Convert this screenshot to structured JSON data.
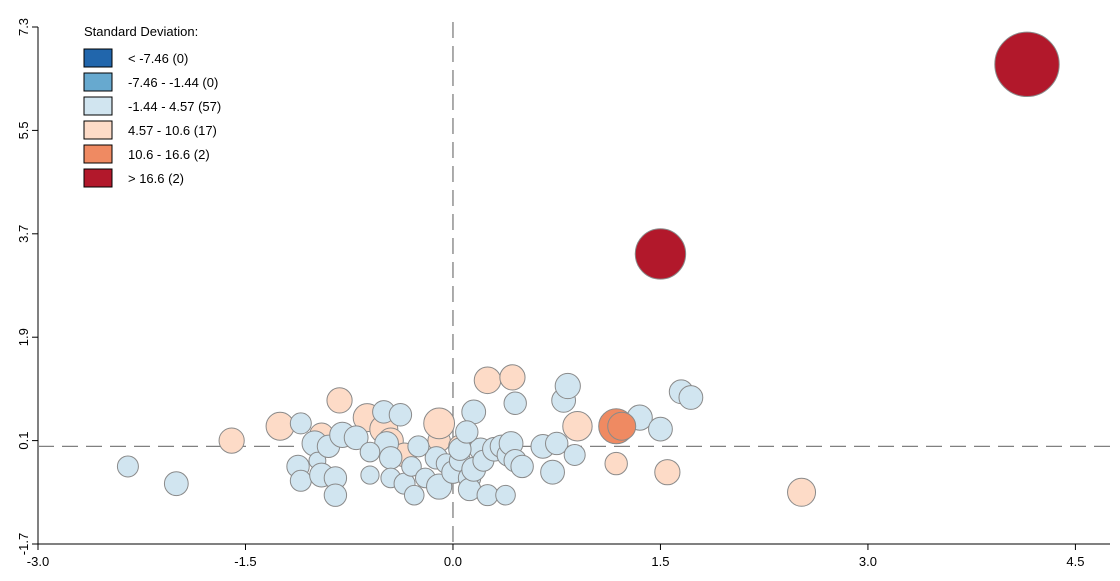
{
  "chart_data": {
    "type": "scatter",
    "title": "",
    "xlabel": "",
    "ylabel": "",
    "xlim": [
      -3.0,
      4.75
    ],
    "ylim": [
      -1.7,
      7.3
    ],
    "x_ticks": [
      -3.0,
      -1.5,
      0.0,
      1.5,
      3.0,
      4.5
    ],
    "x_tick_labels": [
      "-3.0",
      "-1.5",
      "0.0",
      "1.5",
      "3.0",
      "4.5"
    ],
    "y_ticks": [
      -1.7,
      0.1,
      1.9,
      3.7,
      5.5,
      7.3
    ],
    "y_tick_labels": [
      "-1.7",
      "0.1",
      "1.9",
      "3.7",
      "5.5",
      "7.3"
    ],
    "reference_lines": {
      "x": 0.0,
      "y": 0.0
    },
    "grid": false,
    "legend": {
      "title": "Standard Deviation:",
      "placement": "top-left",
      "entries": [
        {
          "label": "< -7.46 (0)",
          "color": "#2166ac"
        },
        {
          "label": "-7.46 - -1.44 (0)",
          "color": "#67a9cf"
        },
        {
          "label": "-1.44 - 4.57 (57)",
          "color": "#d1e5f0"
        },
        {
          "label": "4.57 - 10.6 (17)",
          "color": "#fddbc7"
        },
        {
          "label": "10.6 - 16.6 (2)",
          "color": "#ef8a62"
        },
        {
          "label": "> 16.6 (2)",
          "color": "#b2182b"
        }
      ]
    },
    "point_stroke_color": "#8a8a8a",
    "series": [
      {
        "category": 5,
        "points": [
          [
            4.15,
            6.65,
            2.3
          ],
          [
            1.5,
            3.35,
            1.8
          ]
        ]
      },
      {
        "category": 4,
        "points": [
          [
            1.18,
            0.35,
            1.25
          ],
          [
            1.22,
            0.35,
            1.0
          ]
        ]
      },
      {
        "category": 3,
        "points": [
          [
            -1.6,
            0.1,
            0.9
          ],
          [
            -1.25,
            0.35,
            1.0
          ],
          [
            -0.95,
            0.2,
            0.85
          ],
          [
            -0.82,
            0.8,
            0.9
          ],
          [
            -0.62,
            0.5,
            1.0
          ],
          [
            -0.5,
            0.3,
            1.0
          ],
          [
            -0.45,
            0.1,
            0.9
          ],
          [
            -0.1,
            0.1,
            0.8
          ],
          [
            -0.1,
            0.4,
            1.1
          ],
          [
            0.05,
            0.0,
            0.8
          ],
          [
            0.25,
            1.15,
            0.95
          ],
          [
            0.43,
            1.2,
            0.9
          ],
          [
            0.9,
            0.35,
            1.05
          ],
          [
            1.18,
            -0.3,
            0.8
          ],
          [
            1.55,
            -0.45,
            0.9
          ],
          [
            2.52,
            -0.8,
            1.0
          ],
          [
            -0.35,
            -0.15,
            0.85
          ]
        ]
      },
      {
        "category": 2,
        "points": [
          [
            -2.35,
            -0.35,
            0.75
          ],
          [
            -2.0,
            -0.65,
            0.85
          ],
          [
            -1.1,
            0.4,
            0.75
          ],
          [
            -1.12,
            -0.35,
            0.8
          ],
          [
            -1.1,
            -0.6,
            0.75
          ],
          [
            -1.0,
            0.05,
            0.9
          ],
          [
            -0.98,
            -0.25,
            0.6
          ],
          [
            -0.95,
            -0.5,
            0.85
          ],
          [
            -0.9,
            0.0,
            0.8
          ],
          [
            -0.85,
            -0.55,
            0.8
          ],
          [
            -0.85,
            -0.85,
            0.8
          ],
          [
            -0.8,
            0.2,
            0.9
          ],
          [
            -0.7,
            0.15,
            0.85
          ],
          [
            -0.6,
            -0.5,
            0.65
          ],
          [
            -0.5,
            0.6,
            0.8
          ],
          [
            -0.48,
            0.05,
            0.85
          ],
          [
            -0.45,
            -0.2,
            0.8
          ],
          [
            -0.45,
            -0.55,
            0.7
          ],
          [
            -0.35,
            -0.65,
            0.75
          ],
          [
            -0.3,
            -0.35,
            0.7
          ],
          [
            -0.28,
            -0.85,
            0.7
          ],
          [
            -0.2,
            -0.55,
            0.7
          ],
          [
            -0.12,
            -0.2,
            0.8
          ],
          [
            -0.1,
            -0.7,
            0.9
          ],
          [
            -0.05,
            -0.3,
            0.7
          ],
          [
            0.0,
            -0.45,
            0.8
          ],
          [
            0.05,
            -0.25,
            0.75
          ],
          [
            0.12,
            -0.55,
            0.8
          ],
          [
            0.12,
            -0.75,
            0.8
          ],
          [
            0.15,
            -0.4,
            0.85
          ],
          [
            0.2,
            -0.05,
            0.8
          ],
          [
            0.22,
            -0.25,
            0.75
          ],
          [
            0.25,
            -0.85,
            0.75
          ],
          [
            0.3,
            -0.05,
            0.85
          ],
          [
            0.35,
            0.0,
            0.8
          ],
          [
            0.38,
            -0.85,
            0.7
          ],
          [
            0.4,
            -0.15,
            0.8
          ],
          [
            0.42,
            0.05,
            0.85
          ],
          [
            0.45,
            0.75,
            0.8
          ],
          [
            0.45,
            -0.25,
            0.8
          ],
          [
            0.5,
            -0.35,
            0.8
          ],
          [
            0.15,
            0.6,
            0.85
          ],
          [
            0.65,
            0.0,
            0.85
          ],
          [
            0.72,
            -0.45,
            0.85
          ],
          [
            0.75,
            0.05,
            0.8
          ],
          [
            0.8,
            0.8,
            0.85
          ],
          [
            0.83,
            1.05,
            0.9
          ],
          [
            0.88,
            -0.15,
            0.75
          ],
          [
            1.35,
            0.5,
            0.9
          ],
          [
            1.5,
            0.3,
            0.85
          ],
          [
            1.65,
            0.95,
            0.85
          ],
          [
            1.72,
            0.85,
            0.85
          ],
          [
            -0.25,
            0.0,
            0.75
          ],
          [
            0.05,
            -0.05,
            0.8
          ],
          [
            -0.38,
            0.55,
            0.8
          ],
          [
            0.1,
            0.25,
            0.8
          ],
          [
            -0.6,
            -0.1,
            0.7
          ]
        ]
      }
    ]
  }
}
